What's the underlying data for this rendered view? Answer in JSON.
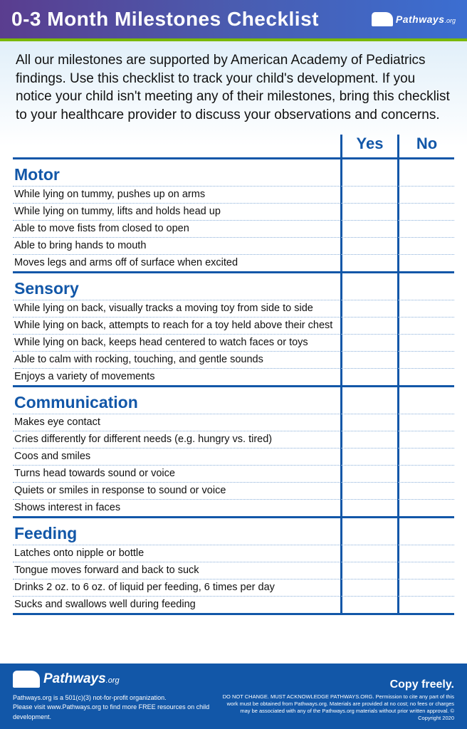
{
  "colors": {
    "brand_blue": "#1257a8",
    "accent_green": "#7ab800",
    "header_gradient_start": "#5a3d8f",
    "header_gradient_end": "#3b6ed1",
    "dotted_rule": "#88aed9",
    "bg_top": "#d5e9f7"
  },
  "header": {
    "title": "0-3 Month Milestones Checklist",
    "brand": "Pathways",
    "brand_suffix": ".org"
  },
  "intro": "All our milestones are supported by American Academy of Pediatrics findings. Use this checklist to track your child's development. If you notice your child isn't meeting any of their milestones, bring this checklist to your healthcare provider to discuss your observations and concerns.",
  "columns": {
    "yes": "Yes",
    "no": "No"
  },
  "sections": [
    {
      "title": "Motor",
      "items": [
        "While lying on tummy, pushes up on arms",
        "While lying on tummy, lifts and holds head up",
        "Able to move fists from closed to open",
        "Able to bring hands to mouth",
        "Moves legs and arms off of surface when excited"
      ]
    },
    {
      "title": "Sensory",
      "items": [
        "While lying on back, visually tracks a moving toy from side to side",
        "While lying on back, attempts to reach for a toy held above their chest",
        "While lying on back, keeps head centered to watch faces or toys",
        "Able to calm with rocking, touching, and gentle sounds",
        "Enjoys a variety of movements"
      ]
    },
    {
      "title": "Communication",
      "items": [
        "Makes eye contact",
        "Cries differently for different needs (e.g. hungry vs. tired)",
        "Coos and smiles",
        "Turns head towards sound or voice",
        "Quiets or smiles in response to sound or voice",
        "Shows interest in faces"
      ]
    },
    {
      "title": "Feeding",
      "items": [
        "Latches onto nipple or bottle",
        "Tongue moves forward and back to suck",
        "Drinks 2 oz. to 6 oz. of liquid per feeding, 6 times per day",
        "Sucks and swallows well during feeding"
      ]
    }
  ],
  "footer": {
    "brand": "Pathways",
    "brand_suffix": ".org",
    "line1": "Pathways.org is a 501(c)(3) not-for-profit organization.",
    "line2": "Please visit www.Pathways.org to find more FREE resources on child development.",
    "copy_title": "Copy freely.",
    "fine_print": "DO NOT CHANGE. MUST ACKNOWLEDGE PATHWAYS.ORG. Permission to cite any part of this work must be obtained from Pathways.org. Materials are provided at no cost; no fees or charges may be associated with any of the Pathways.org materials without prior written approval. © Copyright 2020"
  }
}
